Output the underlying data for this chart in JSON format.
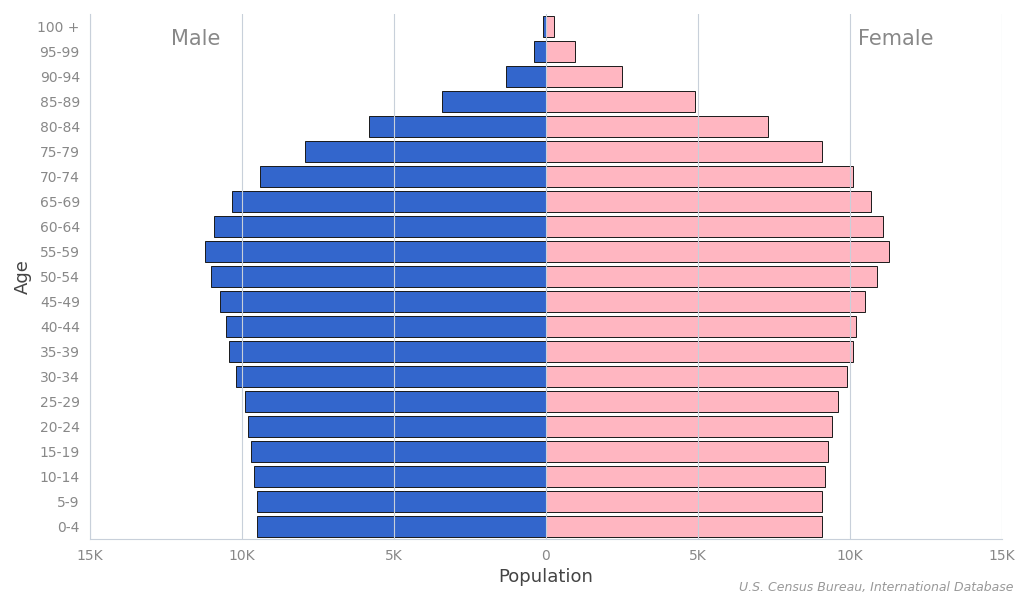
{
  "xlabel": "Population",
  "ylabel": "Age",
  "source": "U.S. Census Bureau, International Database",
  "male_label": "Male",
  "female_label": "Female",
  "xlim": [
    -15000,
    15000
  ],
  "xticks": [
    -15000,
    -10000,
    -5000,
    0,
    5000,
    10000,
    15000
  ],
  "xtick_labels": [
    "15K",
    "10K",
    "5K",
    "0",
    "5K",
    "10K",
    "15K"
  ],
  "age_groups": [
    "0-4",
    "5-9",
    "10-14",
    "15-19",
    "20-24",
    "25-29",
    "30-34",
    "35-39",
    "40-44",
    "45-49",
    "50-54",
    "55-59",
    "60-64",
    "65-69",
    "70-74",
    "75-79",
    "80-84",
    "85-89",
    "90-94",
    "95-99",
    "100 +"
  ],
  "male_values": [
    9500,
    9500,
    9600,
    9700,
    9800,
    9900,
    10200,
    10400,
    10500,
    10700,
    11000,
    11200,
    10900,
    10300,
    9400,
    7900,
    5800,
    3400,
    1300,
    380,
    90
  ],
  "female_values": [
    9100,
    9100,
    9200,
    9300,
    9400,
    9600,
    9900,
    10100,
    10200,
    10500,
    10900,
    11300,
    11100,
    10700,
    10100,
    9100,
    7300,
    4900,
    2500,
    950,
    280
  ],
  "male_color": "#3366CC",
  "female_color": "#FFB6C1",
  "bar_edgecolor": "#1a1a1a",
  "bar_linewidth": 0.7,
  "background_color": "#FFFFFF",
  "grid_color": "#C8D0DA",
  "tick_label_color": "#888888",
  "axis_label_color": "#444444",
  "source_color": "#999999",
  "male_label_fontsize": 15,
  "female_label_fontsize": 15,
  "xlabel_fontsize": 13,
  "ylabel_fontsize": 13,
  "tick_fontsize": 10,
  "source_fontsize": 9,
  "bar_height": 0.85
}
